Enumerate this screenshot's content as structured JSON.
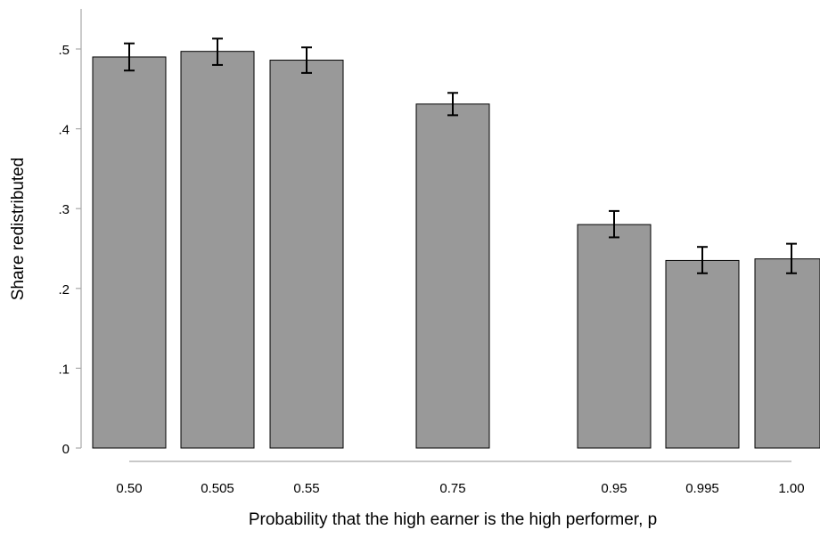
{
  "chart_data": {
    "type": "bar",
    "categories": [
      "0.50",
      "0.505",
      "0.55",
      "0.75",
      "0.95",
      "0.995",
      "1.00"
    ],
    "values": [
      0.49,
      0.497,
      0.486,
      0.431,
      0.28,
      0.235,
      0.237
    ],
    "error_low": [
      0.473,
      0.48,
      0.47,
      0.417,
      0.264,
      0.219,
      0.219
    ],
    "error_high": [
      0.507,
      0.513,
      0.502,
      0.445,
      0.297,
      0.252,
      0.256
    ],
    "x_positions": [
      0.5,
      0.505,
      0.55,
      0.75,
      0.95,
      0.995,
      1.0
    ],
    "ylim": [
      0,
      0.55
    ],
    "yticks": [
      0,
      0.1,
      0.2,
      0.3,
      0.4,
      0.5
    ],
    "ytick_labels": [
      "0",
      ".1",
      ".2",
      ".3",
      ".4",
      ".5"
    ],
    "xlabel": "Probability that the high earner is the high performer, p",
    "ylabel": "Share redistributed",
    "grid": false,
    "colors": {
      "bar_fill": "#999999",
      "bar_stroke": "#000000",
      "axis": "#a8a8a8",
      "error_bar": "#000000"
    }
  }
}
